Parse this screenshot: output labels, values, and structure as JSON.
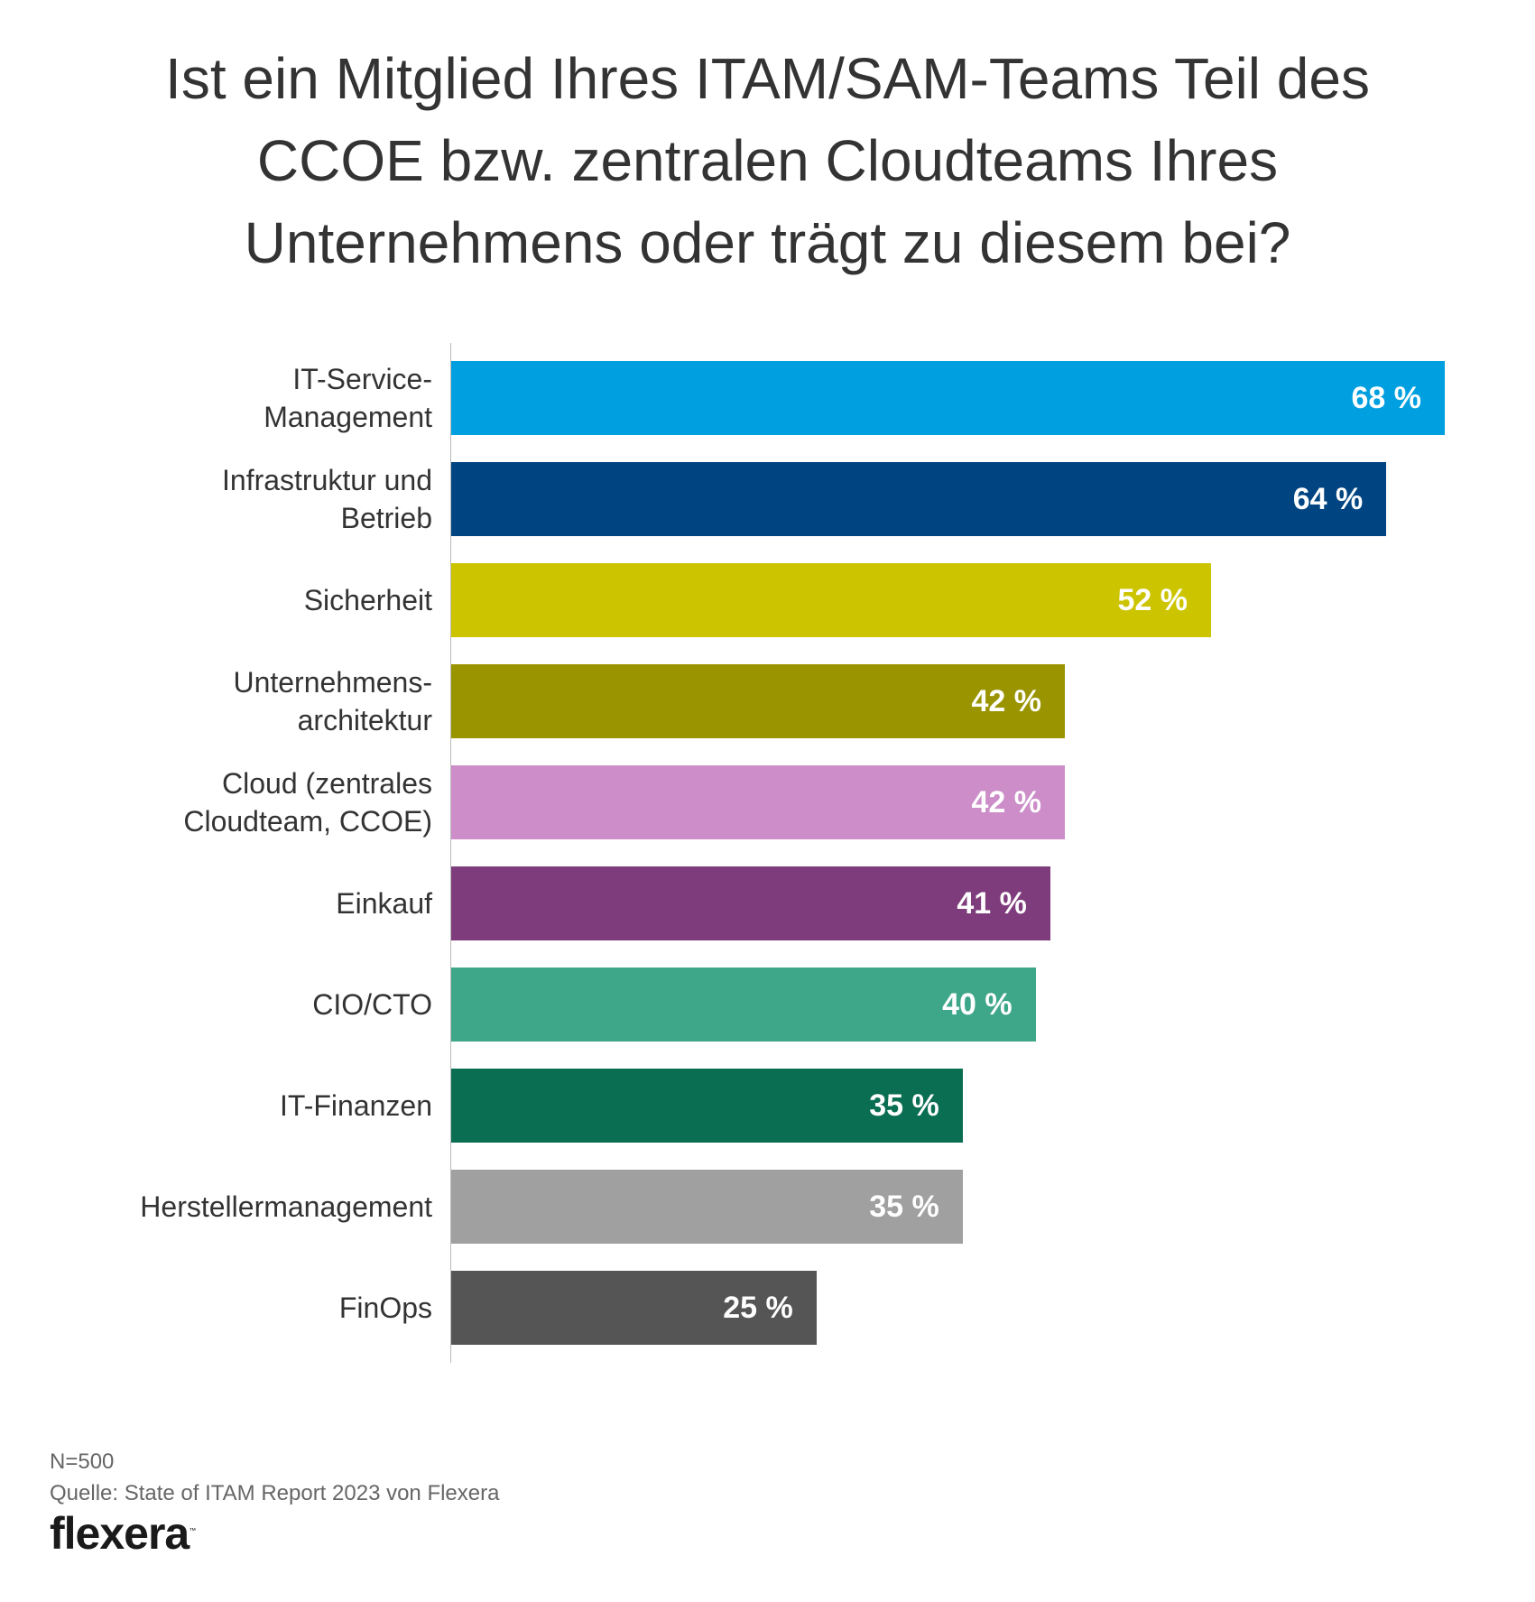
{
  "chart_data": {
    "type": "bar",
    "orientation": "horizontal",
    "title": "Ist ein Mitglied Ihres ITAM/SAM-Teams Teil des CCOE bzw. zentralen Cloudteams Ihres Unternehmens oder trägt zu diesem bei?",
    "title_lines": [
      "Ist ein Mitglied Ihres ITAM/SAM-Teams Teil des",
      "CCOE bzw. zentralen Cloudteams Ihres",
      "Unternehmens oder trägt zu diesem bei?"
    ],
    "categories": [
      "IT-Service-\nManagement",
      "Infrastruktur und\nBetrieb",
      "Sicherheit",
      "Unternehmens-\narchitektur",
      "Cloud (zentrales\nCloudteam, CCOE)",
      "Einkauf",
      "CIO/CTO",
      "IT-Finanzen",
      "Herstellermanagement",
      "FinOps"
    ],
    "values": [
      68,
      64,
      52,
      42,
      42,
      41,
      40,
      35,
      35,
      25
    ],
    "value_labels": [
      "68 %",
      "64 %",
      "52 %",
      "42 %",
      "42 %",
      "41 %",
      "40 %",
      "35 %",
      "35 %",
      "25 %"
    ],
    "colors": [
      "#00a0e0",
      "#004481",
      "#cdc400",
      "#999400",
      "#cc8dc8",
      "#7f3c7c",
      "#3ea689",
      "#0a6e52",
      "#a0a0a0",
      "#555555"
    ],
    "unit": "%",
    "xlim": [
      0,
      70
    ],
    "grid": false,
    "xlabel": "",
    "ylabel": ""
  },
  "footer": {
    "n": "N=500",
    "source": "Quelle: State of ITAM Report 2023 von Flexera"
  },
  "logo": {
    "text": "flexera",
    "tm": "™"
  }
}
